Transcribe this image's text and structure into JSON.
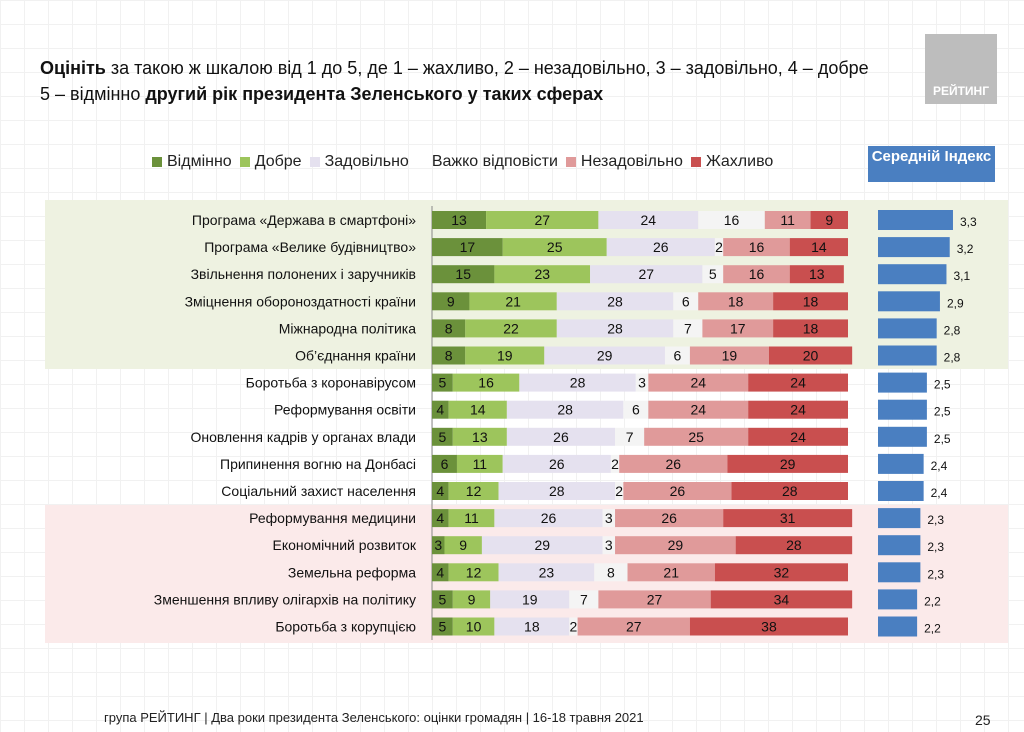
{
  "title": {
    "bold1": "Оцініть",
    "text1": " за такою ж шкалою від 1 до 5, де 1 – жахливо, 2 – незадовільно, 3 – задовільно, 4 – добре 5 – відмінно ",
    "bold2": "другий рік президента Зеленського у таких сферах"
  },
  "logo": "РЕЙТИНГ",
  "mean_header": "Середній Індекс",
  "footer": "група РЕЙТИНГ | Два роки президента Зеленського: оцінки громадян  | 16-18 травня 2021",
  "page_number": "25",
  "chart_data": {
    "type": "bar",
    "stacked": true,
    "orientation": "horizontal",
    "legend_placement": "top",
    "categories": [
      "Програма «Держава в смартфоні»",
      "Програма «Велике будівництво»",
      "Звільнення полонених і заручників",
      "Зміцнення обороноздатності країни",
      "Міжнародна політика",
      "Об’єднання країни",
      "Боротьба з коронавірусом",
      "Реформування освіти",
      "Оновлення кадрів у органах влади",
      "Припинення вогню на Донбасі",
      "Соціальний захист населення",
      "Реформування медицини",
      "Економічний розвиток",
      "Земельна реформа",
      "Зменшення впливу олігархів на політику",
      "Боротьба з корупцією"
    ],
    "series": [
      {
        "name": "Відмінно",
        "color": "#6b913b",
        "values": [
          13,
          17,
          15,
          9,
          8,
          8,
          5,
          4,
          5,
          6,
          4,
          4,
          3,
          4,
          5,
          5
        ]
      },
      {
        "name": "Добре",
        "color": "#9dc55c",
        "values": [
          27,
          25,
          23,
          21,
          22,
          19,
          16,
          14,
          13,
          11,
          12,
          11,
          9,
          12,
          9,
          10
        ]
      },
      {
        "name": "Задовільно",
        "color": "#e5e1ef",
        "values": [
          24,
          26,
          27,
          28,
          28,
          29,
          28,
          28,
          26,
          26,
          28,
          26,
          29,
          23,
          19,
          18
        ]
      },
      {
        "name": "Важко відповісти",
        "color": "#f4f4f4",
        "values": [
          16,
          2,
          5,
          6,
          7,
          6,
          3,
          6,
          7,
          2,
          2,
          3,
          3,
          8,
          7,
          2
        ]
      },
      {
        "name": "Незадовільно",
        "color": "#e09a9a",
        "values": [
          11,
          16,
          16,
          18,
          17,
          19,
          24,
          24,
          25,
          26,
          26,
          26,
          29,
          21,
          27,
          27
        ]
      },
      {
        "name": "Жахливо",
        "color": "#c94f4f",
        "values": [
          9,
          14,
          13,
          18,
          18,
          20,
          24,
          24,
          24,
          29,
          28,
          31,
          28,
          32,
          34,
          38
        ]
      }
    ],
    "mean_index": {
      "name": "Середній Індекс",
      "color": "#4a7fc1",
      "values": [
        "3,3",
        "3,2",
        "3,1",
        "2,9",
        "2,8",
        "2,8",
        "2,5",
        "2,5",
        "2,5",
        "2,4",
        "2,4",
        "2,3",
        "2,3",
        "2,3",
        "2,2",
        "2,2"
      ]
    },
    "highlight": {
      "positive_rows": [
        0,
        5
      ],
      "negative_rows": [
        11,
        15
      ],
      "positive_color": "#eef2e1",
      "negative_color": "#fbeaea"
    }
  }
}
